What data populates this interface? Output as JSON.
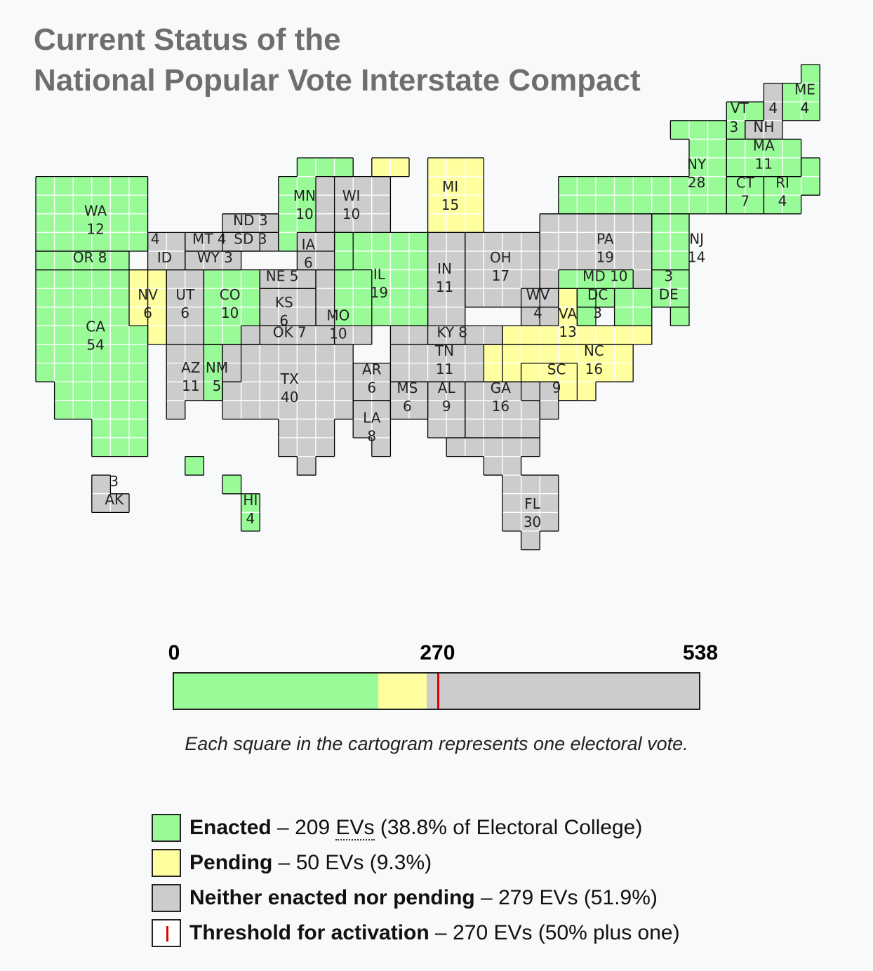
{
  "title": {
    "line1": "Current Status of the",
    "line2": "National Popular Vote Interstate Compact"
  },
  "colors": {
    "enacted": "#98fb98",
    "pending": "#ffffa0",
    "neither": "#cccccc",
    "threshold": "#e00000",
    "outline": "#000000",
    "grid": "#ffffff"
  },
  "states": [
    {
      "abbr": "WA",
      "ev": "12",
      "status": "enacted"
    },
    {
      "abbr": "OR",
      "ev": "8",
      "status": "enacted"
    },
    {
      "abbr": "CA",
      "ev": "54",
      "status": "enacted"
    },
    {
      "abbr": "NV",
      "ev": "6",
      "status": "pending"
    },
    {
      "abbr": "ID",
      "ev": "4",
      "status": "neither"
    },
    {
      "abbr": "MT",
      "ev": "4",
      "status": "neither"
    },
    {
      "abbr": "WY",
      "ev": "3",
      "status": "neither"
    },
    {
      "abbr": "UT",
      "ev": "6",
      "status": "neither"
    },
    {
      "abbr": "AZ",
      "ev": "11",
      "status": "neither"
    },
    {
      "abbr": "CO",
      "ev": "10",
      "status": "enacted"
    },
    {
      "abbr": "NM",
      "ev": "5",
      "status": "enacted"
    },
    {
      "abbr": "ND",
      "ev": "3",
      "status": "neither"
    },
    {
      "abbr": "SD",
      "ev": "3",
      "status": "neither"
    },
    {
      "abbr": "NE",
      "ev": "5",
      "status": "neither"
    },
    {
      "abbr": "KS",
      "ev": "6",
      "status": "neither"
    },
    {
      "abbr": "OK",
      "ev": "7",
      "status": "neither"
    },
    {
      "abbr": "TX",
      "ev": "40",
      "status": "neither"
    },
    {
      "abbr": "MN",
      "ev": "10",
      "status": "enacted"
    },
    {
      "abbr": "IA",
      "ev": "6",
      "status": "neither"
    },
    {
      "abbr": "MO",
      "ev": "10",
      "status": "neither"
    },
    {
      "abbr": "AR",
      "ev": "6",
      "status": "neither"
    },
    {
      "abbr": "LA",
      "ev": "8",
      "status": "neither"
    },
    {
      "abbr": "WI",
      "ev": "10",
      "status": "neither"
    },
    {
      "abbr": "IL",
      "ev": "19",
      "status": "enacted"
    },
    {
      "abbr": "MI",
      "ev": "15",
      "status": "pending"
    },
    {
      "abbr": "IN",
      "ev": "11",
      "status": "neither"
    },
    {
      "abbr": "OH",
      "ev": "17",
      "status": "neither"
    },
    {
      "abbr": "KY",
      "ev": "8",
      "status": "neither"
    },
    {
      "abbr": "TN",
      "ev": "11",
      "status": "neither"
    },
    {
      "abbr": "MS",
      "ev": "6",
      "status": "neither"
    },
    {
      "abbr": "AL",
      "ev": "9",
      "status": "neither"
    },
    {
      "abbr": "GA",
      "ev": "16",
      "status": "neither"
    },
    {
      "abbr": "FL",
      "ev": "30",
      "status": "neither"
    },
    {
      "abbr": "SC",
      "ev": "9",
      "status": "neither"
    },
    {
      "abbr": "NC",
      "ev": "16",
      "status": "pending"
    },
    {
      "abbr": "VA",
      "ev": "13",
      "status": "pending"
    },
    {
      "abbr": "WV",
      "ev": "4",
      "status": "neither"
    },
    {
      "abbr": "PA",
      "ev": "19",
      "status": "neither"
    },
    {
      "abbr": "MD",
      "ev": "10",
      "status": "enacted"
    },
    {
      "abbr": "DC",
      "ev": "3",
      "status": "enacted"
    },
    {
      "abbr": "DE",
      "ev": "3",
      "status": "enacted"
    },
    {
      "abbr": "NJ",
      "ev": "14",
      "status": "enacted"
    },
    {
      "abbr": "NY",
      "ev": "28",
      "status": "enacted"
    },
    {
      "abbr": "CT",
      "ev": "7",
      "status": "enacted"
    },
    {
      "abbr": "RI",
      "ev": "4",
      "status": "enacted"
    },
    {
      "abbr": "MA",
      "ev": "11",
      "status": "enacted"
    },
    {
      "abbr": "VT",
      "ev": "3",
      "status": "enacted"
    },
    {
      "abbr": "NH",
      "ev": "4",
      "status": "neither"
    },
    {
      "abbr": "ME",
      "ev": "4",
      "status": "enacted"
    },
    {
      "abbr": "AK",
      "ev": "3",
      "status": "neither"
    },
    {
      "abbr": "HI",
      "ev": "4",
      "status": "enacted"
    }
  ],
  "scale": {
    "min_label": "0",
    "mid_label": "270",
    "max_label": "538",
    "total": 538,
    "threshold": 270,
    "enacted": 209,
    "pending": 50
  },
  "note": "Each square in the cartogram represents one electoral vote.",
  "legend": [
    {
      "status": "enacted",
      "label": "Enacted",
      "dash": " – 209 ",
      "abbr": "EVs",
      "rest": " (38.8% of Electoral College)"
    },
    {
      "status": "pending",
      "label": "Pending",
      "dash": " – 50 EVs (9.3%)",
      "abbr": "",
      "rest": ""
    },
    {
      "status": "neither",
      "label": "Neither enacted nor pending",
      "dash": " – 279 EVs (51.9%)",
      "abbr": "",
      "rest": ""
    },
    {
      "status": "threshold",
      "label": "Threshold for activation",
      "dash": " – 270 EVs (50% plus one)",
      "abbr": "",
      "rest": ""
    }
  ]
}
